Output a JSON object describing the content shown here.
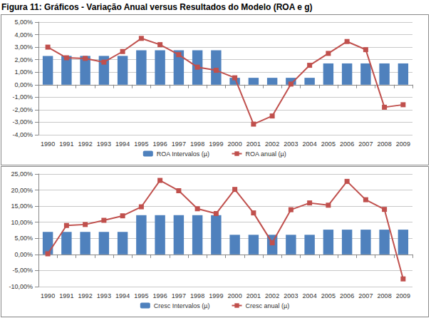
{
  "title": "Figura 11: Gráficos - Variação Anual versus Resultados do Modelo (ROA e g)",
  "chart_data": [
    {
      "type": "bar",
      "categories": [
        "1990",
        "1991",
        "1992",
        "1993",
        "1994",
        "1995",
        "1996",
        "1997",
        "1998",
        "1999",
        "2000",
        "2001",
        "2002",
        "2003",
        "2004",
        "2005",
        "2006",
        "2007",
        "2008",
        "2009"
      ],
      "series": [
        {
          "name": "ROA Intervalos (µ)",
          "type": "bar",
          "color": "#4f81bd",
          "values": [
            2.3,
            2.3,
            2.3,
            2.3,
            2.3,
            2.75,
            2.75,
            2.75,
            2.75,
            2.75,
            0.55,
            0.55,
            0.55,
            0.55,
            0.55,
            1.7,
            1.7,
            1.7,
            1.7,
            1.7
          ]
        },
        {
          "name": "ROA anual (µ)",
          "type": "line",
          "color": "#c0504d",
          "marker": "square",
          "values": [
            3.0,
            2.15,
            2.1,
            1.8,
            2.65,
            3.7,
            3.2,
            2.4,
            1.4,
            1.15,
            0.55,
            -3.15,
            -2.5,
            0.05,
            1.55,
            2.5,
            3.45,
            2.8,
            -1.8,
            -1.6
          ]
        }
      ],
      "ylim": [
        -4,
        5
      ],
      "yticks": [
        {
          "value": -4,
          "label": "-4,00%"
        },
        {
          "value": -3,
          "label": "-3,00%"
        },
        {
          "value": -2,
          "label": "-2,00%"
        },
        {
          "value": -1,
          "label": "-1,00%"
        },
        {
          "value": 0,
          "label": "0,00%"
        },
        {
          "value": 1,
          "label": "1,00%"
        },
        {
          "value": 2,
          "label": "2,00%"
        },
        {
          "value": 3,
          "label": "3,00%"
        },
        {
          "value": 4,
          "label": "4,00%"
        },
        {
          "value": 5,
          "label": "5,00%"
        }
      ],
      "grid": true,
      "legend": "bottom"
    },
    {
      "type": "bar",
      "categories": [
        "1990",
        "1991",
        "1992",
        "1993",
        "1994",
        "1995",
        "1996",
        "1997",
        "1998",
        "1999",
        "2000",
        "2001",
        "2002",
        "2003",
        "2004",
        "2005",
        "2006",
        "2007",
        "2008",
        "2009"
      ],
      "series": [
        {
          "name": "Cresc Intervalos (µ)",
          "type": "bar",
          "color": "#4f81bd",
          "values": [
            7.0,
            7.0,
            7.0,
            7.0,
            7.0,
            12.2,
            12.2,
            12.2,
            12.2,
            12.2,
            6.1,
            6.1,
            6.1,
            6.1,
            6.1,
            7.7,
            7.7,
            7.7,
            7.7,
            7.7
          ]
        },
        {
          "name": "Cresc anual (µ)",
          "type": "line",
          "color": "#c0504d",
          "marker": "square",
          "values": [
            0.2,
            9.0,
            9.3,
            10.6,
            12.0,
            14.8,
            23.0,
            19.8,
            14.2,
            12.7,
            20.2,
            12.9,
            3.6,
            13.9,
            16.0,
            15.3,
            22.7,
            17.0,
            14.0,
            -7.6
          ]
        }
      ],
      "ylim": [
        -10,
        25
      ],
      "yticks": [
        {
          "value": -10,
          "label": "-10,00%"
        },
        {
          "value": -5,
          "label": "-5,00%"
        },
        {
          "value": 0,
          "label": "0,00%"
        },
        {
          "value": 5,
          "label": "5,00%"
        },
        {
          "value": 10,
          "label": "10,00%"
        },
        {
          "value": 15,
          "label": "15,00%"
        },
        {
          "value": 20,
          "label": "20,00%"
        },
        {
          "value": 25,
          "label": "25,00%"
        }
      ],
      "grid": true,
      "legend": "bottom"
    }
  ]
}
